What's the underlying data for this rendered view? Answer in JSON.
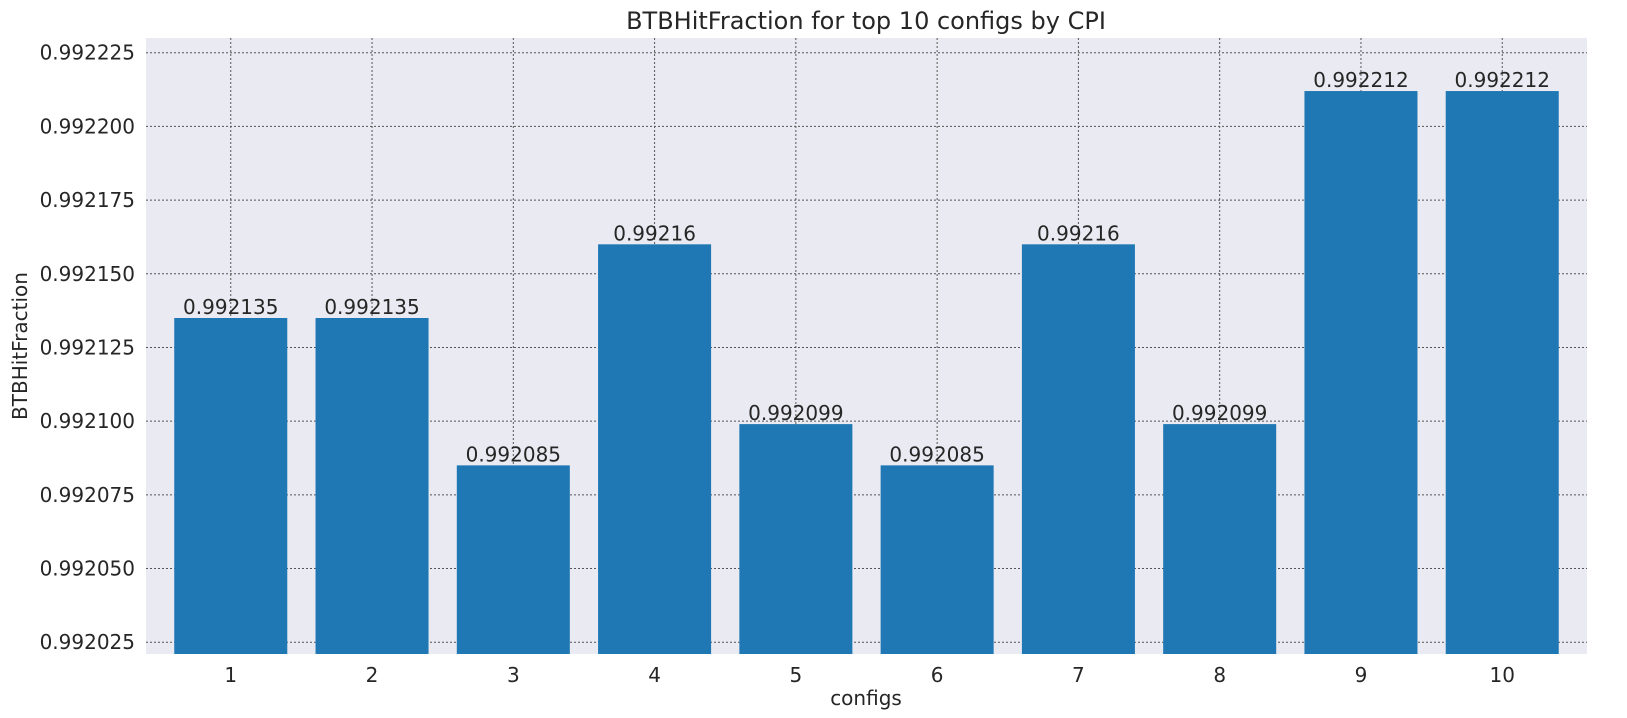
{
  "chart_data": {
    "type": "bar",
    "title": "BTBHitFraction for top 10 configs by CPI",
    "xlabel": "configs",
    "ylabel": "BTBHitFraction",
    "categories": [
      "1",
      "2",
      "3",
      "4",
      "5",
      "6",
      "7",
      "8",
      "9",
      "10"
    ],
    "values": [
      0.992135,
      0.992135,
      0.992085,
      0.99216,
      0.992099,
      0.992085,
      0.99216,
      0.992099,
      0.992212,
      0.992212
    ],
    "data_labels": [
      "0.992135",
      "0.992135",
      "0.992085",
      "0.99216",
      "0.992099",
      "0.992085",
      "0.99216",
      "0.992099",
      "0.992212",
      "0.992212"
    ],
    "ylim": [
      0.992021,
      0.99223
    ],
    "yticks": [
      0.992025,
      0.99205,
      0.992075,
      0.9921,
      0.992125,
      0.99215,
      0.992175,
      0.9922,
      0.992225
    ],
    "ytick_labels": [
      "0.992025",
      "0.992050",
      "0.992075",
      "0.992100",
      "0.992125",
      "0.992150",
      "0.992175",
      "0.992200",
      "0.992225"
    ],
    "grid": true,
    "colors": {
      "bar": "#1f77b4",
      "plot_background": "#eaeaf2",
      "grid": "#555555",
      "text": "#262626"
    }
  }
}
